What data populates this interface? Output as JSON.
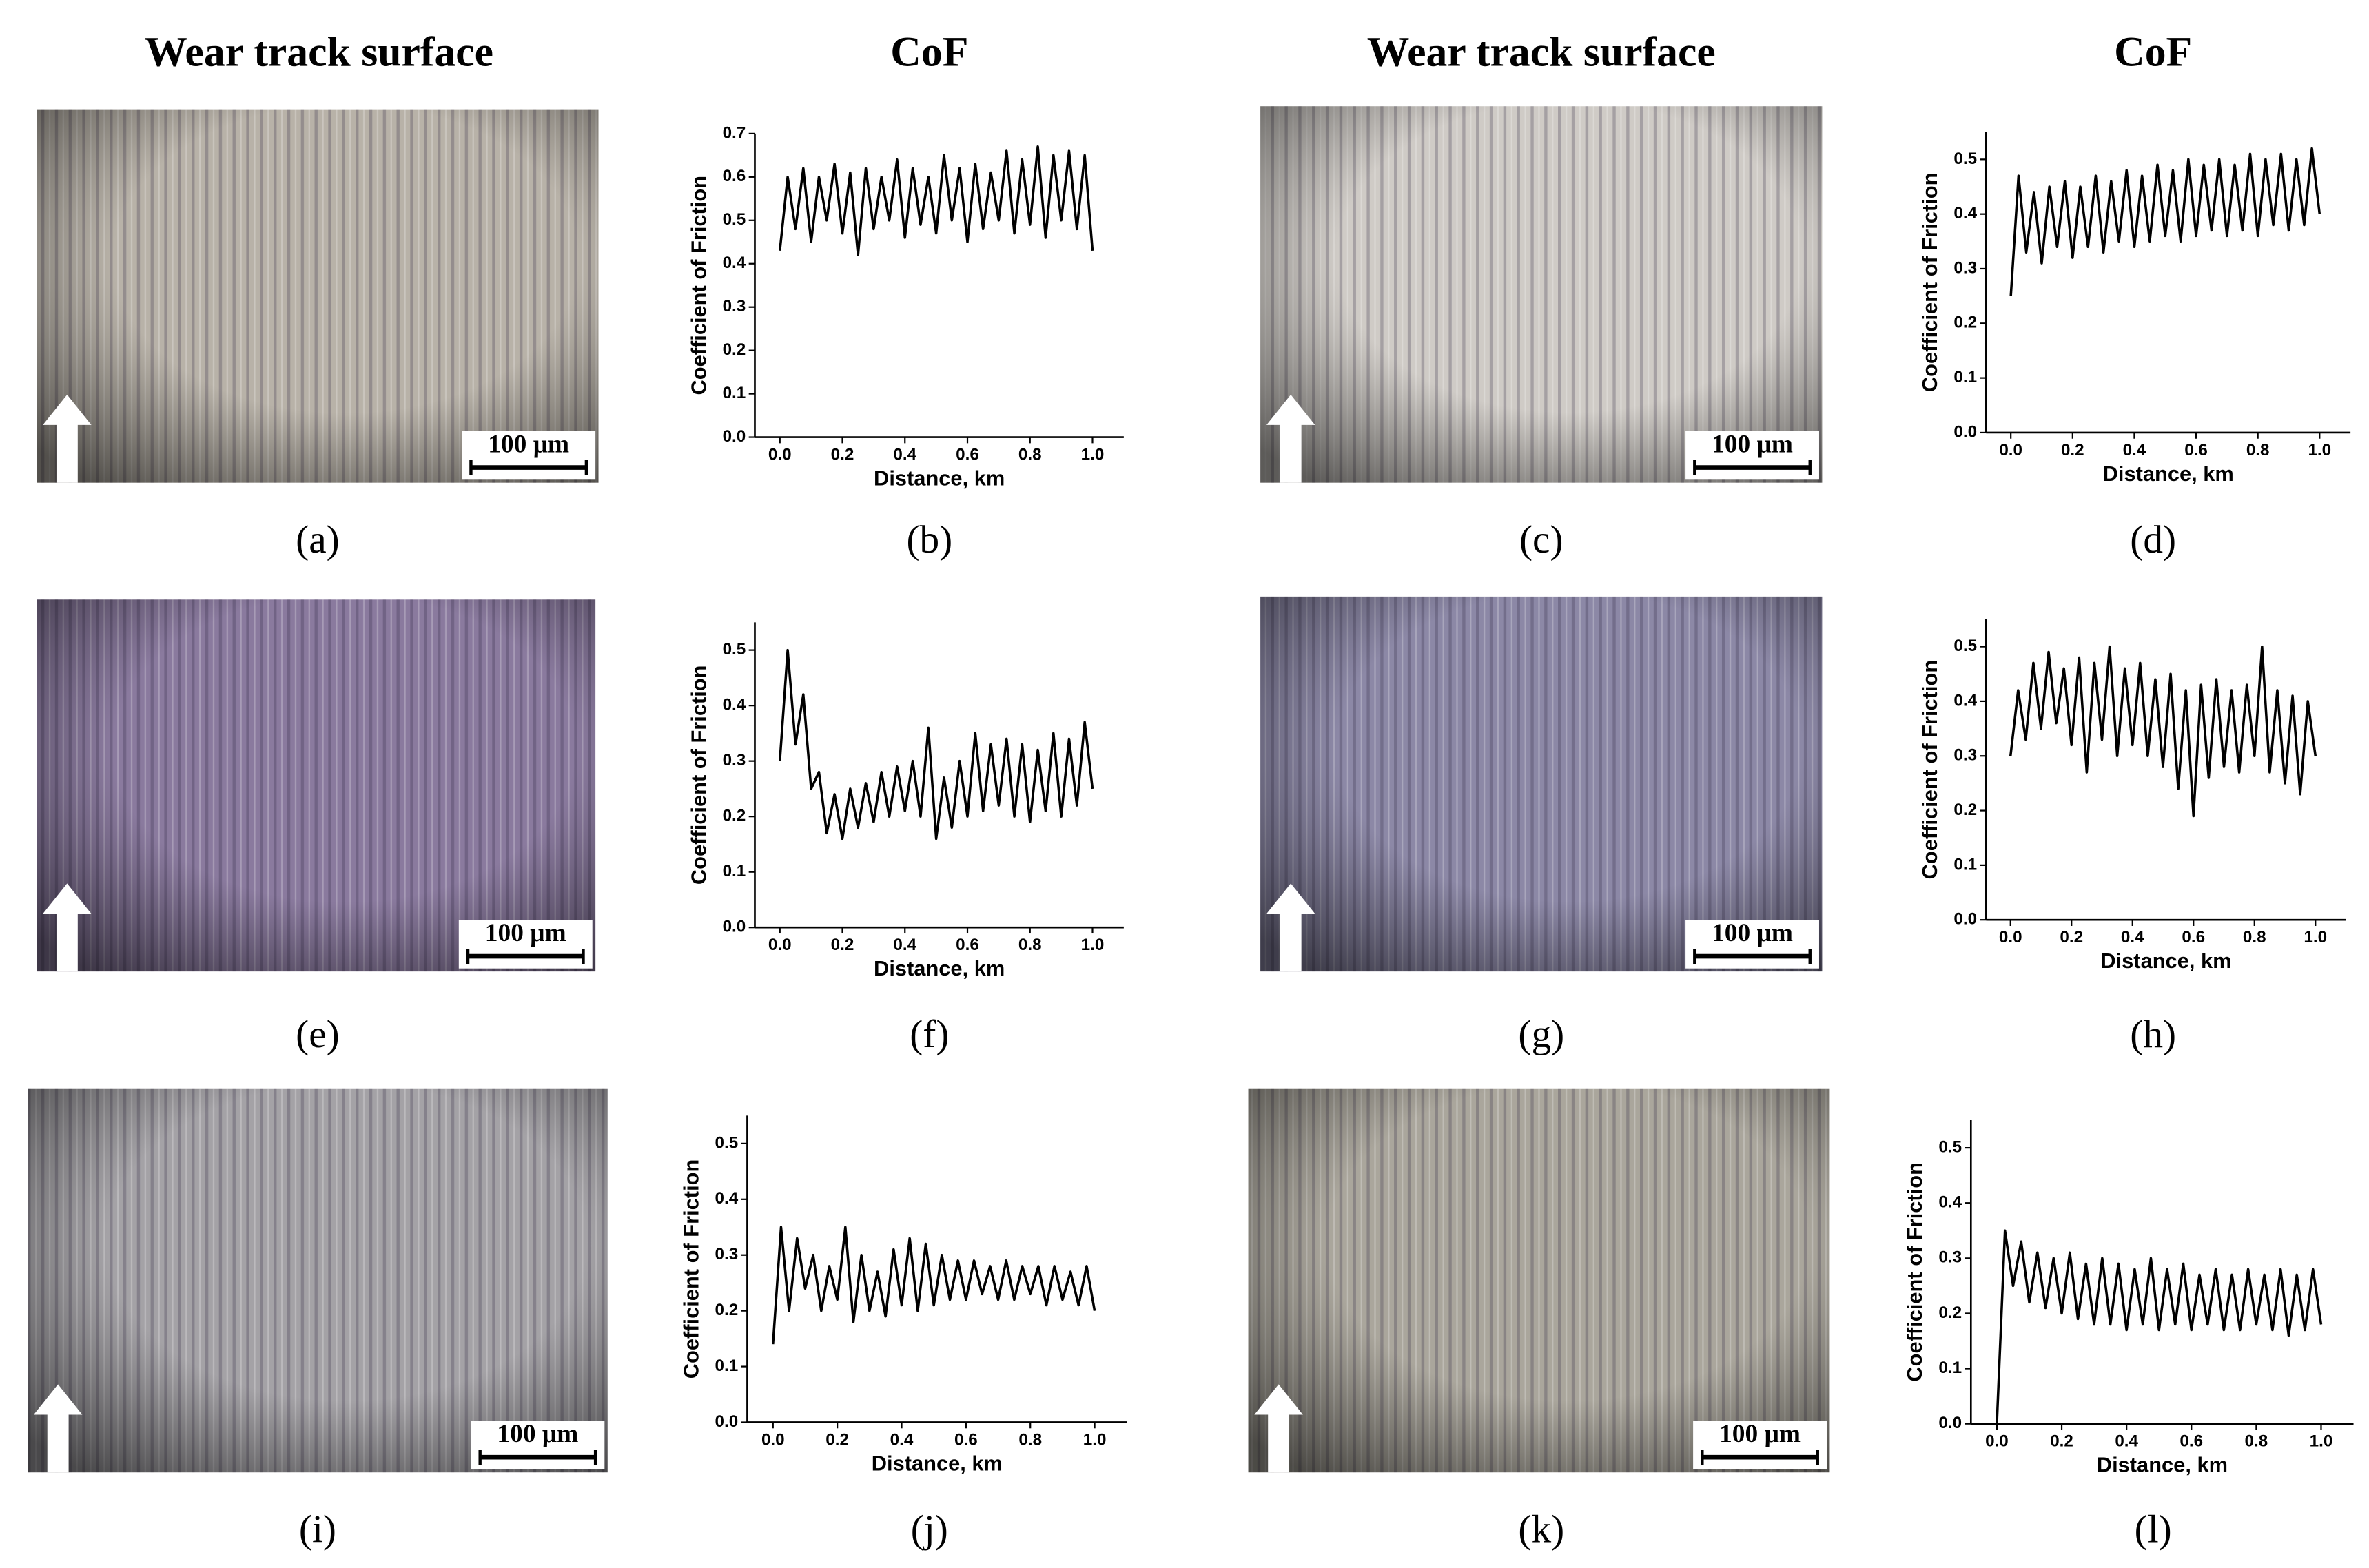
{
  "headers": [
    "Wear track surface",
    "CoF",
    "Wear track surface",
    "CoF"
  ],
  "micrographs": [
    {
      "label": "(a)",
      "scale_bar": "100 μm"
    },
    {
      "label": "(c)",
      "scale_bar": "100 μm"
    },
    {
      "label": "(e)",
      "scale_bar": "100 μm"
    },
    {
      "label": "(g)",
      "scale_bar": "100 μm"
    },
    {
      "label": "(i)",
      "scale_bar": "100 μm"
    },
    {
      "label": "(k)",
      "scale_bar": "100 μm"
    }
  ],
  "chart_data": [
    {
      "type": "line",
      "label": "(b)",
      "x_label": "Distance, km",
      "y_label": "Coefficient of Friction",
      "color": "#000000",
      "xlim": [
        -0.08,
        1.1
      ],
      "xticks": [
        {
          "value": 0,
          "label": "0.0"
        },
        0.2,
        0.4,
        0.6,
        0.8,
        {
          "value": 1,
          "label": "1.0"
        }
      ],
      "ylim": [
        0,
        0.7
      ],
      "yticks": [
        {
          "value": 0,
          "label": "0.0"
        },
        0.1,
        0.2,
        0.3,
        0.4,
        0.5,
        0.6,
        0.7
      ],
      "x": [
        0,
        0.025,
        0.05,
        0.075,
        0.1,
        0.125,
        0.15,
        0.175,
        0.2,
        0.225,
        0.25,
        0.275,
        0.3,
        0.325,
        0.35,
        0.375,
        0.4,
        0.425,
        0.45,
        0.475,
        0.5,
        0.525,
        0.55,
        0.575,
        0.6,
        0.625,
        0.65,
        0.675,
        0.7,
        0.725,
        0.75,
        0.775,
        0.8,
        0.825,
        0.85,
        0.875,
        0.9,
        0.925,
        0.95,
        0.975,
        1
      ],
      "values": [
        0.43,
        0.6,
        0.48,
        0.62,
        0.45,
        0.6,
        0.5,
        0.63,
        0.47,
        0.61,
        0.42,
        0.62,
        0.48,
        0.6,
        0.5,
        0.64,
        0.46,
        0.62,
        0.49,
        0.6,
        0.47,
        0.65,
        0.5,
        0.62,
        0.45,
        0.63,
        0.48,
        0.61,
        0.5,
        0.66,
        0.47,
        0.64,
        0.49,
        0.67,
        0.46,
        0.65,
        0.5,
        0.66,
        0.48,
        0.65,
        0.43
      ]
    },
    {
      "type": "line",
      "label": "(d)",
      "x_label": "Distance, km",
      "y_label": "Coefficient of Friction",
      "color": "#000000",
      "xlim": [
        -0.08,
        1.1
      ],
      "xticks": [
        {
          "value": 0,
          "label": "0.0"
        },
        0.2,
        0.4,
        0.6,
        0.8,
        {
          "value": 1,
          "label": "1.0"
        }
      ],
      "ylim": [
        0,
        0.55
      ],
      "yticks": [
        {
          "value": 0,
          "label": "0.0"
        },
        0.1,
        0.2,
        0.3,
        0.4,
        0.5
      ],
      "x": [
        0,
        0.025,
        0.05,
        0.075,
        0.1,
        0.125,
        0.15,
        0.175,
        0.2,
        0.225,
        0.25,
        0.275,
        0.3,
        0.325,
        0.35,
        0.375,
        0.4,
        0.425,
        0.45,
        0.475,
        0.5,
        0.525,
        0.55,
        0.575,
        0.6,
        0.625,
        0.65,
        0.675,
        0.7,
        0.725,
        0.75,
        0.775,
        0.8,
        0.825,
        0.85,
        0.875,
        0.9,
        0.925,
        0.95,
        0.975,
        1
      ],
      "values": [
        0.25,
        0.47,
        0.33,
        0.44,
        0.31,
        0.45,
        0.34,
        0.46,
        0.32,
        0.45,
        0.34,
        0.47,
        0.33,
        0.46,
        0.35,
        0.48,
        0.34,
        0.47,
        0.35,
        0.49,
        0.36,
        0.48,
        0.35,
        0.5,
        0.36,
        0.49,
        0.37,
        0.5,
        0.36,
        0.49,
        0.37,
        0.51,
        0.36,
        0.5,
        0.38,
        0.51,
        0.37,
        0.5,
        0.38,
        0.52,
        0.4
      ]
    },
    {
      "type": "line",
      "label": "(f)",
      "x_label": "Distance, km",
      "y_label": "Coefficient of Friction",
      "color": "#000000",
      "xlim": [
        -0.08,
        1.1
      ],
      "xticks": [
        {
          "value": 0,
          "label": "0.0"
        },
        0.2,
        0.4,
        0.6,
        0.8,
        {
          "value": 1,
          "label": "1.0"
        }
      ],
      "ylim": [
        0,
        0.55
      ],
      "yticks": [
        {
          "value": 0,
          "label": "0.0"
        },
        0.1,
        0.2,
        0.3,
        0.4,
        0.5
      ],
      "x": [
        0,
        0.025,
        0.05,
        0.075,
        0.1,
        0.125,
        0.15,
        0.175,
        0.2,
        0.225,
        0.25,
        0.275,
        0.3,
        0.325,
        0.35,
        0.375,
        0.4,
        0.425,
        0.45,
        0.475,
        0.5,
        0.525,
        0.55,
        0.575,
        0.6,
        0.625,
        0.65,
        0.675,
        0.7,
        0.725,
        0.75,
        0.775,
        0.8,
        0.825,
        0.85,
        0.875,
        0.9,
        0.925,
        0.95,
        0.975,
        1
      ],
      "values": [
        0.3,
        0.5,
        0.33,
        0.42,
        0.25,
        0.28,
        0.17,
        0.24,
        0.16,
        0.25,
        0.18,
        0.26,
        0.19,
        0.28,
        0.2,
        0.29,
        0.21,
        0.3,
        0.2,
        0.36,
        0.16,
        0.27,
        0.18,
        0.3,
        0.2,
        0.35,
        0.21,
        0.33,
        0.22,
        0.34,
        0.2,
        0.33,
        0.19,
        0.32,
        0.21,
        0.35,
        0.2,
        0.34,
        0.22,
        0.37,
        0.25
      ]
    },
    {
      "type": "line",
      "label": "(h)",
      "x_label": "Distance, km",
      "y_label": "Coefficient of Friction",
      "color": "#000000",
      "xlim": [
        -0.08,
        1.1
      ],
      "xticks": [
        {
          "value": 0,
          "label": "0.0"
        },
        0.2,
        0.4,
        0.6,
        0.8,
        {
          "value": 1,
          "label": "1.0"
        }
      ],
      "ylim": [
        0,
        0.55
      ],
      "yticks": [
        {
          "value": 0,
          "label": "0.0"
        },
        0.1,
        0.2,
        0.3,
        0.4,
        0.5
      ],
      "x": [
        0,
        0.025,
        0.05,
        0.075,
        0.1,
        0.125,
        0.15,
        0.175,
        0.2,
        0.225,
        0.25,
        0.275,
        0.3,
        0.325,
        0.35,
        0.375,
        0.4,
        0.425,
        0.45,
        0.475,
        0.5,
        0.525,
        0.55,
        0.575,
        0.6,
        0.625,
        0.65,
        0.675,
        0.7,
        0.725,
        0.75,
        0.775,
        0.8,
        0.825,
        0.85,
        0.875,
        0.9,
        0.925,
        0.95,
        0.975,
        1
      ],
      "values": [
        0.3,
        0.42,
        0.33,
        0.47,
        0.35,
        0.49,
        0.36,
        0.46,
        0.32,
        0.48,
        0.27,
        0.47,
        0.33,
        0.5,
        0.3,
        0.46,
        0.32,
        0.47,
        0.3,
        0.44,
        0.28,
        0.45,
        0.24,
        0.42,
        0.19,
        0.43,
        0.26,
        0.44,
        0.28,
        0.42,
        0.27,
        0.43,
        0.3,
        0.5,
        0.27,
        0.42,
        0.25,
        0.41,
        0.23,
        0.4,
        0.3
      ]
    },
    {
      "type": "line",
      "label": "(j)",
      "x_label": "Distance, km",
      "y_label": "Coefficient of Friction",
      "color": "#000000",
      "xlim": [
        -0.08,
        1.1
      ],
      "xticks": [
        {
          "value": 0,
          "label": "0.0"
        },
        0.2,
        0.4,
        0.6,
        0.8,
        {
          "value": 1,
          "label": "1.0"
        }
      ],
      "ylim": [
        0,
        0.55
      ],
      "yticks": [
        {
          "value": 0,
          "label": "0.0"
        },
        0.1,
        0.2,
        0.3,
        0.4,
        0.5
      ],
      "x": [
        0,
        0.025,
        0.05,
        0.075,
        0.1,
        0.125,
        0.15,
        0.175,
        0.2,
        0.225,
        0.25,
        0.275,
        0.3,
        0.325,
        0.35,
        0.375,
        0.4,
        0.425,
        0.45,
        0.475,
        0.5,
        0.525,
        0.55,
        0.575,
        0.6,
        0.625,
        0.65,
        0.675,
        0.7,
        0.725,
        0.75,
        0.775,
        0.8,
        0.825,
        0.85,
        0.875,
        0.9,
        0.925,
        0.95,
        0.975,
        1
      ],
      "values": [
        0.14,
        0.35,
        0.2,
        0.33,
        0.24,
        0.3,
        0.2,
        0.28,
        0.22,
        0.35,
        0.18,
        0.3,
        0.2,
        0.27,
        0.19,
        0.31,
        0.21,
        0.33,
        0.2,
        0.32,
        0.21,
        0.3,
        0.22,
        0.29,
        0.22,
        0.29,
        0.23,
        0.28,
        0.22,
        0.29,
        0.22,
        0.28,
        0.23,
        0.28,
        0.21,
        0.28,
        0.22,
        0.27,
        0.21,
        0.28,
        0.2
      ]
    },
    {
      "type": "line",
      "label": "(l)",
      "x_label": "Distance, km",
      "y_label": "Coefficient of Friction",
      "color": "#000000",
      "xlim": [
        -0.08,
        1.1
      ],
      "xticks": [
        {
          "value": 0,
          "label": "0.0"
        },
        0.2,
        0.4,
        0.6,
        0.8,
        {
          "value": 1,
          "label": "1.0"
        }
      ],
      "ylim": [
        0,
        0.55
      ],
      "yticks": [
        {
          "value": 0,
          "label": "0.0"
        },
        0.1,
        0.2,
        0.3,
        0.4,
        0.5
      ],
      "x": [
        0,
        0.025,
        0.05,
        0.075,
        0.1,
        0.125,
        0.15,
        0.175,
        0.2,
        0.225,
        0.25,
        0.275,
        0.3,
        0.325,
        0.35,
        0.375,
        0.4,
        0.425,
        0.45,
        0.475,
        0.5,
        0.525,
        0.55,
        0.575,
        0.6,
        0.625,
        0.65,
        0.675,
        0.7,
        0.725,
        0.75,
        0.775,
        0.8,
        0.825,
        0.85,
        0.875,
        0.9,
        0.925,
        0.95,
        0.975,
        1
      ],
      "values": [
        0,
        0.35,
        0.25,
        0.33,
        0.22,
        0.31,
        0.21,
        0.3,
        0.2,
        0.31,
        0.19,
        0.29,
        0.18,
        0.3,
        0.18,
        0.29,
        0.17,
        0.28,
        0.18,
        0.3,
        0.17,
        0.28,
        0.18,
        0.29,
        0.17,
        0.27,
        0.18,
        0.28,
        0.17,
        0.27,
        0.17,
        0.28,
        0.18,
        0.27,
        0.17,
        0.28,
        0.16,
        0.27,
        0.17,
        0.28,
        0.18
      ]
    }
  ]
}
